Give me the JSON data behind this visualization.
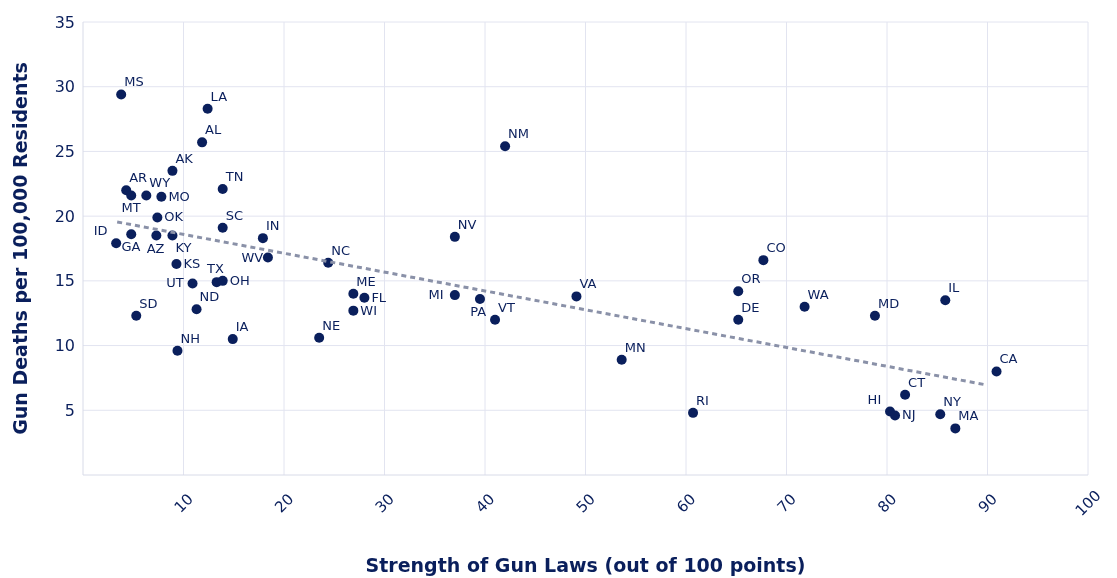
{
  "chart_data": {
    "type": "scatter",
    "xlabel": "Strength of Gun Laws (out of 100 points)",
    "ylabel": "Gun Deaths per 100,000 Residents",
    "xlim": [
      0,
      100
    ],
    "xticks": [
      10,
      20,
      30,
      40,
      50,
      60,
      70,
      80,
      90,
      100
    ],
    "ylim": [
      0,
      35
    ],
    "yticks": [
      5,
      10,
      15,
      20,
      25,
      30,
      35
    ],
    "grid": true,
    "series": [
      {
        "type": "scatter",
        "color": "#0a1f5c",
        "marker": "circle",
        "x": [
          3.8,
          12.4,
          11.85,
          8.9,
          13.9,
          4.3,
          4.8,
          6.3,
          7.8,
          7.4,
          13.9,
          17.9,
          3.3,
          4.8,
          7.3,
          8.9,
          18.4,
          24.4,
          9.3,
          10.9,
          13.3,
          13.9,
          11.3,
          5.3,
          14.9,
          9.4,
          23.5,
          42.0,
          37.0,
          26.9,
          28.0,
          26.9,
          37.0,
          39.5,
          41.0,
          49.1,
          53.6,
          60.7,
          67.7,
          65.2,
          65.2,
          71.8,
          78.8,
          85.8,
          90.9,
          81.8,
          80.3,
          80.8,
          85.3,
          86.8
        ],
        "values": [
          29.4,
          28.3,
          25.7,
          23.5,
          22.1,
          22.0,
          21.6,
          21.6,
          21.5,
          19.9,
          19.1,
          18.3,
          17.9,
          18.6,
          18.5,
          18.5,
          16.8,
          16.4,
          16.3,
          14.8,
          14.9,
          15.0,
          12.8,
          12.3,
          10.5,
          9.6,
          10.6,
          25.4,
          18.4,
          14.0,
          13.7,
          12.7,
          13.9,
          13.6,
          12.0,
          13.8,
          8.9,
          4.8,
          16.6,
          14.2,
          12.0,
          13.0,
          12.3,
          13.5,
          8.0,
          6.2,
          4.9,
          4.6,
          4.7,
          3.6
        ]
      },
      {
        "type": "line",
        "color": "#8a91a8",
        "line_style": "dashed",
        "marker": "none",
        "x": [
          3.4,
          89.6
        ],
        "values": [
          19.55,
          7.0
        ]
      }
    ],
    "annotations": [
      {
        "text": "MS",
        "x": 3.8,
        "y": 29.4
      },
      {
        "text": "LA",
        "x": 12.4,
        "y": 28.3
      },
      {
        "text": "AL",
        "x": 11.85,
        "y": 25.7
      },
      {
        "text": "AK",
        "x": 8.9,
        "y": 23.5
      },
      {
        "text": "TN",
        "x": 13.9,
        "y": 22.1
      },
      {
        "text": "AR",
        "x": 4.3,
        "y": 22.0
      },
      {
        "text": "MT",
        "x": 4.8,
        "y": 21.6
      },
      {
        "text": "WY",
        "x": 6.3,
        "y": 21.6
      },
      {
        "text": "MO",
        "x": 7.8,
        "y": 21.5
      },
      {
        "text": "OK",
        "x": 7.4,
        "y": 19.9
      },
      {
        "text": "SC",
        "x": 13.9,
        "y": 19.1
      },
      {
        "text": "IN",
        "x": 17.9,
        "y": 18.3
      },
      {
        "text": "ID",
        "x": 3.3,
        "y": 17.9
      },
      {
        "text": "GA",
        "x": 4.8,
        "y": 18.6
      },
      {
        "text": "AZ",
        "x": 7.3,
        "y": 18.5
      },
      {
        "text": "KY",
        "x": 8.9,
        "y": 18.5
      },
      {
        "text": "WV",
        "x": 18.4,
        "y": 16.8
      },
      {
        "text": "NC",
        "x": 24.4,
        "y": 16.4
      },
      {
        "text": "KS",
        "x": 9.3,
        "y": 16.3
      },
      {
        "text": "UT",
        "x": 10.9,
        "y": 14.8
      },
      {
        "text": "TX",
        "x": 13.3,
        "y": 14.9
      },
      {
        "text": "OH",
        "x": 13.9,
        "y": 15.0
      },
      {
        "text": "ND",
        "x": 11.3,
        "y": 12.8
      },
      {
        "text": "SD",
        "x": 5.3,
        "y": 12.3
      },
      {
        "text": "IA",
        "x": 14.9,
        "y": 10.5
      },
      {
        "text": "NH",
        "x": 9.4,
        "y": 9.6
      },
      {
        "text": "NE",
        "x": 23.5,
        "y": 10.6
      },
      {
        "text": "NM",
        "x": 42.0,
        "y": 25.4
      },
      {
        "text": "NV",
        "x": 37.0,
        "y": 18.4
      },
      {
        "text": "ME",
        "x": 26.9,
        "y": 14.0
      },
      {
        "text": "FL",
        "x": 28.0,
        "y": 13.7
      },
      {
        "text": "WI",
        "x": 26.9,
        "y": 12.7
      },
      {
        "text": "MI",
        "x": 37.0,
        "y": 13.9
      },
      {
        "text": "PA",
        "x": 39.5,
        "y": 13.6
      },
      {
        "text": "VT",
        "x": 41.0,
        "y": 12.0
      },
      {
        "text": "VA",
        "x": 49.1,
        "y": 13.8
      },
      {
        "text": "MN",
        "x": 53.6,
        "y": 8.9
      },
      {
        "text": "RI",
        "x": 60.7,
        "y": 4.8
      },
      {
        "text": "CO",
        "x": 67.7,
        "y": 16.6
      },
      {
        "text": "OR",
        "x": 65.2,
        "y": 14.2
      },
      {
        "text": "DE",
        "x": 65.2,
        "y": 12.0
      },
      {
        "text": "WA",
        "x": 71.8,
        "y": 13.0
      },
      {
        "text": "MD",
        "x": 78.8,
        "y": 12.3
      },
      {
        "text": "IL",
        "x": 85.8,
        "y": 13.5
      },
      {
        "text": "CA",
        "x": 90.9,
        "y": 8.0
      },
      {
        "text": "CT",
        "x": 81.8,
        "y": 6.2
      },
      {
        "text": "HI",
        "x": 80.3,
        "y": 4.9
      },
      {
        "text": "NJ",
        "x": 80.8,
        "y": 4.6
      },
      {
        "text": "NY",
        "x": 85.3,
        "y": 4.7
      },
      {
        "text": "MA",
        "x": 86.8,
        "y": 3.6
      }
    ]
  }
}
